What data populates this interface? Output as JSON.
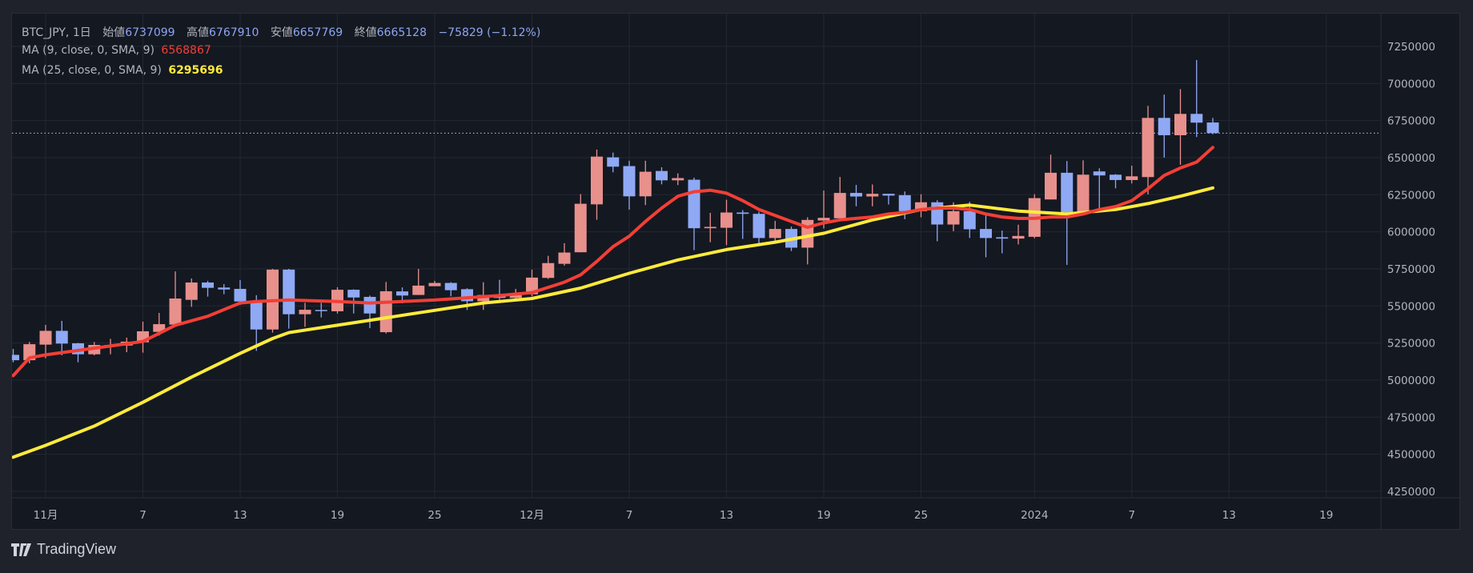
{
  "legend": {
    "symbol": "BTC_JPY, 1日",
    "open_label": "始値",
    "open": "6737099",
    "high_label": "高値",
    "high": "6767910",
    "low_label": "安値",
    "low": "6657769",
    "close_label": "終値",
    "close": "6665128",
    "change": "−75829 (−1.12%)",
    "ma9_label": "MA (9, close, 0, SMA, 9)",
    "ma9_value": "6568867",
    "ma25_label": "MA (25, close, 0, SMA, 9)",
    "ma25_value": "6295696"
  },
  "logo": {
    "text": "TradingView"
  },
  "colors": {
    "up": "#e8908c",
    "down": "#8fa9f5",
    "ma9": "#f23f36",
    "ma25": "#ffeb3b",
    "value": "#8ea6f0"
  },
  "chart_data": {
    "type": "candlestick",
    "title": "BTC_JPY, 1日",
    "ylim": [
      4250000,
      7250000
    ],
    "y_ticks": [
      "7250000",
      "7000000",
      "6750000",
      "6500000",
      "6250000",
      "6000000",
      "5750000",
      "5500000",
      "5250000",
      "5000000",
      "4750000",
      "4500000",
      "4250000"
    ],
    "x_ticks": [
      {
        "day": 2,
        "label": "11月"
      },
      {
        "day": 8,
        "label": "7"
      },
      {
        "day": 14,
        "label": "13"
      },
      {
        "day": 20,
        "label": "19"
      },
      {
        "day": 26,
        "label": "25"
      },
      {
        "day": 32,
        "label": "12月"
      },
      {
        "day": 38,
        "label": "7"
      },
      {
        "day": 44,
        "label": "13"
      },
      {
        "day": 50,
        "label": "19"
      },
      {
        "day": 56,
        "label": "25"
      },
      {
        "day": 63,
        "label": "2024"
      },
      {
        "day": 69,
        "label": "7"
      },
      {
        "day": 75,
        "label": "13"
      },
      {
        "day": 81,
        "label": "19"
      }
    ],
    "last_close": 6665128,
    "candles_ohlc": [
      [
        5170000,
        5210000,
        5120000,
        5134000
      ],
      [
        5134000,
        5257000,
        5113000,
        5242000
      ],
      [
        5239000,
        5372000,
        5147000,
        5332000
      ],
      [
        5332000,
        5399000,
        5167000,
        5246000
      ],
      [
        5248000,
        5251000,
        5120000,
        5174000
      ],
      [
        5174000,
        5257000,
        5167000,
        5237000
      ],
      [
        5233000,
        5278000,
        5174000,
        5237000
      ],
      [
        5233000,
        5286000,
        5188000,
        5259000
      ],
      [
        5255000,
        5394000,
        5185000,
        5329000
      ],
      [
        5325000,
        5453000,
        5300000,
        5377000
      ],
      [
        5374000,
        5733000,
        5368000,
        5550000
      ],
      [
        5541000,
        5685000,
        5494000,
        5658000
      ],
      [
        5658000,
        5669000,
        5563000,
        5622000
      ],
      [
        5624000,
        5647000,
        5579000,
        5611000
      ],
      [
        5615000,
        5674000,
        5507000,
        5530000
      ],
      [
        5534000,
        5572000,
        5197000,
        5341000
      ],
      [
        5341000,
        5750000,
        5320000,
        5745000
      ],
      [
        5745000,
        5750000,
        5347000,
        5444000
      ],
      [
        5444000,
        5521000,
        5359000,
        5474000
      ],
      [
        5473000,
        5521000,
        5422000,
        5467000
      ],
      [
        5464000,
        5626000,
        5449000,
        5609000
      ],
      [
        5609000,
        5612000,
        5449000,
        5557000
      ],
      [
        5561000,
        5570000,
        5350000,
        5449000
      ],
      [
        5323000,
        5662000,
        5314000,
        5599000
      ],
      [
        5598000,
        5625000,
        5518000,
        5570000
      ],
      [
        5574000,
        5750000,
        5574000,
        5637000
      ],
      [
        5633000,
        5669000,
        5633000,
        5655000
      ],
      [
        5655000,
        5660000,
        5565000,
        5606000
      ],
      [
        5613000,
        5619000,
        5473000,
        5532000
      ],
      [
        5532000,
        5660000,
        5473000,
        5574000
      ],
      [
        5568000,
        5676000,
        5541000,
        5554000
      ],
      [
        5554000,
        5615000,
        5532000,
        5583000
      ],
      [
        5579000,
        5745000,
        5565000,
        5691000
      ],
      [
        5689000,
        5838000,
        5682000,
        5789000
      ],
      [
        5784000,
        5923000,
        5772000,
        5860000
      ],
      [
        5862000,
        6254000,
        5862000,
        6189000
      ],
      [
        6185000,
        6554000,
        6081000,
        6507000
      ],
      [
        6502000,
        6534000,
        6401000,
        6439000
      ],
      [
        6443000,
        6479000,
        6149000,
        6239000
      ],
      [
        6239000,
        6479000,
        6180000,
        6405000
      ],
      [
        6410000,
        6435000,
        6320000,
        6347000
      ],
      [
        6347000,
        6394000,
        6315000,
        6362000
      ],
      [
        6351000,
        6365000,
        5876000,
        6024000
      ],
      [
        6024000,
        6128000,
        5930000,
        6033000
      ],
      [
        6027000,
        6216000,
        5910000,
        6130000
      ],
      [
        6130000,
        6146000,
        5952000,
        6121000
      ],
      [
        6121000,
        6135000,
        5907000,
        5958000
      ],
      [
        5958000,
        6073000,
        5936000,
        6019000
      ],
      [
        6019000,
        6035000,
        5870000,
        5893000
      ],
      [
        5893000,
        6098000,
        5780000,
        6080000
      ],
      [
        6076000,
        6278000,
        6022000,
        6094000
      ],
      [
        6091000,
        6370000,
        6085000,
        6262000
      ],
      [
        6262000,
        6316000,
        6172000,
        6238000
      ],
      [
        6238000,
        6319000,
        6172000,
        6256000
      ],
      [
        6256000,
        6256000,
        6184000,
        6244000
      ],
      [
        6247000,
        6272000,
        6085000,
        6139000
      ],
      [
        6139000,
        6253000,
        6098000,
        6199000
      ],
      [
        6199000,
        6213000,
        5936000,
        6049000
      ],
      [
        6049000,
        6199000,
        6004000,
        6139000
      ],
      [
        6139000,
        6202000,
        5958000,
        6017000
      ],
      [
        6019000,
        6116000,
        5828000,
        5958000
      ],
      [
        5963000,
        6008000,
        5855000,
        5954000
      ],
      [
        5954000,
        6048000,
        5915000,
        5972000
      ],
      [
        5966000,
        6253000,
        5956000,
        6227000
      ],
      [
        6218000,
        6520000,
        6218000,
        6398000
      ],
      [
        6398000,
        6477000,
        5777000,
        6131000
      ],
      [
        6131000,
        6482000,
        6113000,
        6385000
      ],
      [
        6407000,
        6428000,
        6155000,
        6380000
      ],
      [
        6385000,
        6389000,
        6293000,
        6349000
      ],
      [
        6349000,
        6446000,
        6326000,
        6374000
      ],
      [
        6369000,
        6849000,
        6252000,
        6768000
      ],
      [
        6768000,
        6925000,
        6500000,
        6651000
      ],
      [
        6651000,
        6962000,
        6452000,
        6795000
      ],
      [
        6795000,
        7158000,
        6639000,
        6736000
      ],
      [
        6737099,
        6767910,
        6657769,
        6665128
      ]
    ],
    "ma9": [
      [
        0,
        5030000
      ],
      [
        1,
        5150000
      ],
      [
        2,
        5170000
      ],
      [
        4,
        5200000
      ],
      [
        8,
        5260000
      ],
      [
        10,
        5370000
      ],
      [
        12,
        5430000
      ],
      [
        14,
        5520000
      ],
      [
        15,
        5530000
      ],
      [
        17,
        5540000
      ],
      [
        20,
        5530000
      ],
      [
        22,
        5520000
      ],
      [
        24,
        5530000
      ],
      [
        26,
        5540000
      ],
      [
        28,
        5555000
      ],
      [
        30,
        5570000
      ],
      [
        32,
        5590000
      ],
      [
        34,
        5660000
      ],
      [
        35,
        5710000
      ],
      [
        36,
        5800000
      ],
      [
        37,
        5900000
      ],
      [
        38,
        5970000
      ],
      [
        39,
        6070000
      ],
      [
        40,
        6160000
      ],
      [
        41,
        6240000
      ],
      [
        42,
        6270000
      ],
      [
        43,
        6280000
      ],
      [
        44,
        6260000
      ],
      [
        45,
        6210000
      ],
      [
        46,
        6150000
      ],
      [
        47,
        6110000
      ],
      [
        48,
        6070000
      ],
      [
        49,
        6030000
      ],
      [
        50,
        6060000
      ],
      [
        51,
        6080000
      ],
      [
        52,
        6090000
      ],
      [
        53,
        6100000
      ],
      [
        54,
        6120000
      ],
      [
        55,
        6130000
      ],
      [
        56,
        6150000
      ],
      [
        57,
        6160000
      ],
      [
        58,
        6160000
      ],
      [
        59,
        6150000
      ],
      [
        60,
        6120000
      ],
      [
        61,
        6100000
      ],
      [
        62,
        6090000
      ],
      [
        63,
        6090000
      ],
      [
        64,
        6100000
      ],
      [
        65,
        6100000
      ],
      [
        66,
        6120000
      ],
      [
        67,
        6150000
      ],
      [
        68,
        6170000
      ],
      [
        69,
        6210000
      ],
      [
        70,
        6290000
      ],
      [
        71,
        6380000
      ],
      [
        72,
        6430000
      ],
      [
        73,
        6470000
      ],
      [
        74,
        6568867
      ]
    ],
    "ma25": [
      [
        0,
        4480000
      ],
      [
        2,
        4560000
      ],
      [
        5,
        4690000
      ],
      [
        8,
        4850000
      ],
      [
        11,
        5020000
      ],
      [
        14,
        5180000
      ],
      [
        16,
        5280000
      ],
      [
        17,
        5320000
      ],
      [
        20,
        5370000
      ],
      [
        23,
        5420000
      ],
      [
        26,
        5470000
      ],
      [
        29,
        5520000
      ],
      [
        32,
        5550000
      ],
      [
        35,
        5620000
      ],
      [
        38,
        5720000
      ],
      [
        41,
        5810000
      ],
      [
        44,
        5880000
      ],
      [
        47,
        5930000
      ],
      [
        50,
        5990000
      ],
      [
        53,
        6080000
      ],
      [
        56,
        6150000
      ],
      [
        59,
        6180000
      ],
      [
        62,
        6140000
      ],
      [
        65,
        6120000
      ],
      [
        68,
        6150000
      ],
      [
        70,
        6190000
      ],
      [
        72,
        6240000
      ],
      [
        74,
        6295696
      ]
    ]
  }
}
